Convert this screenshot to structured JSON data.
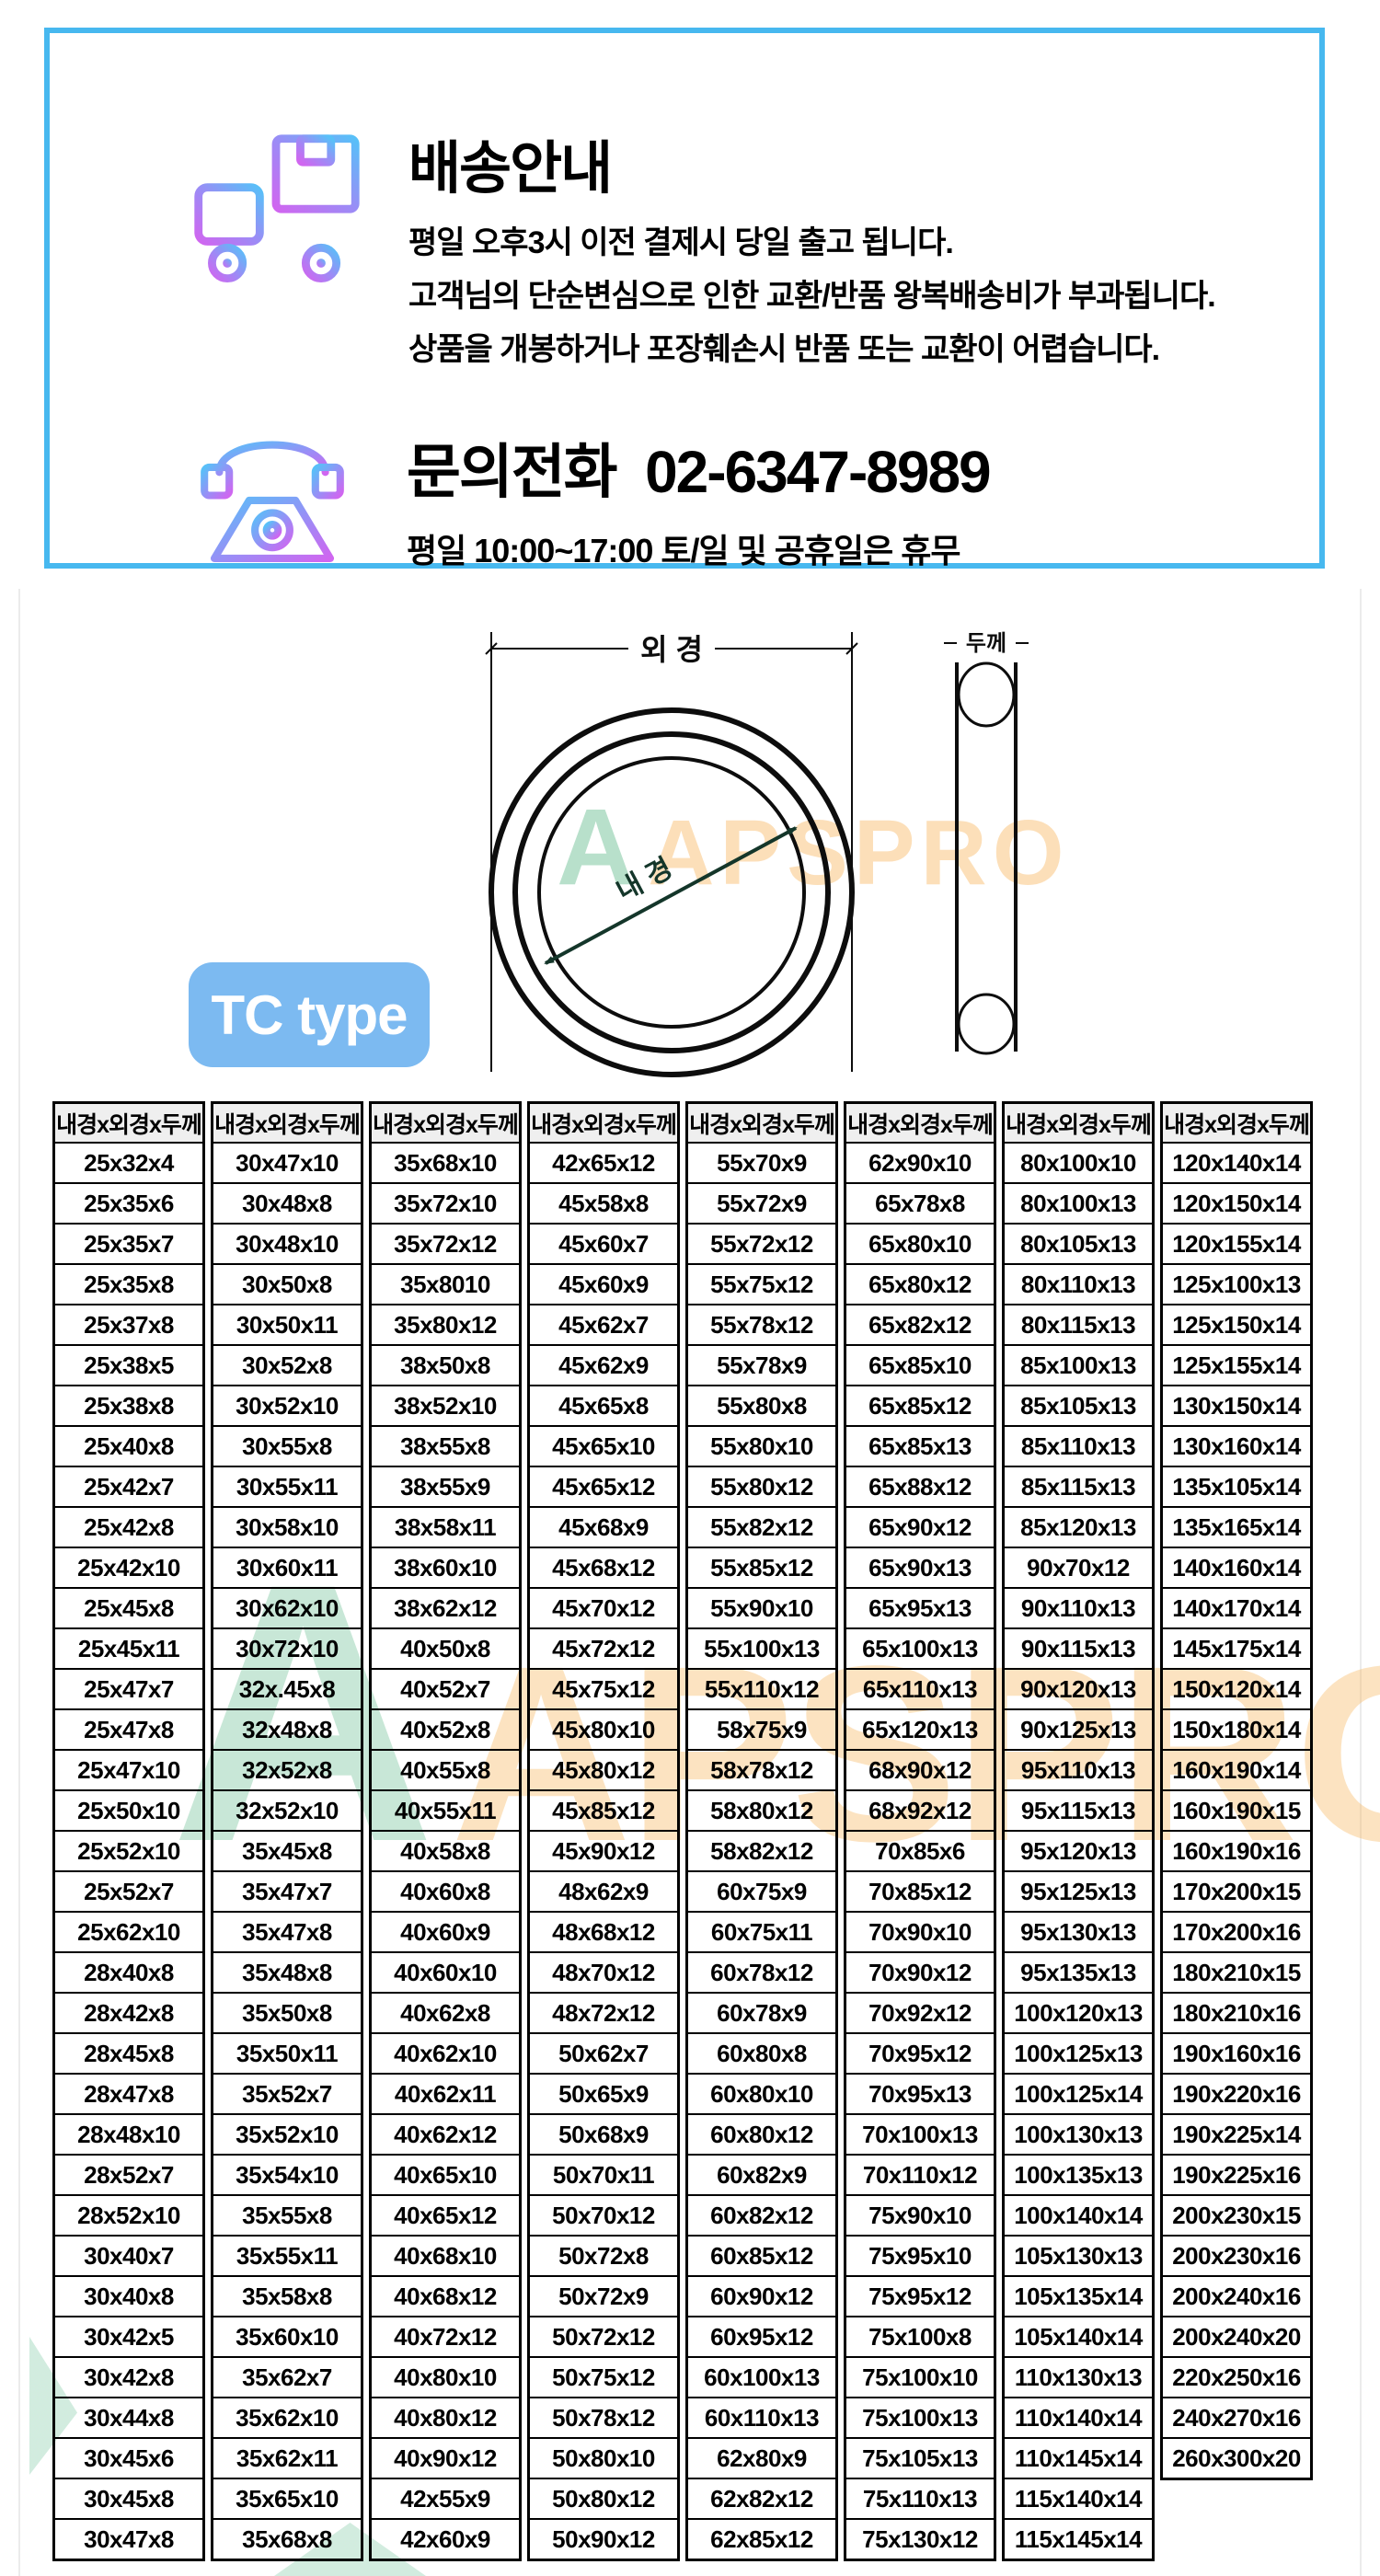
{
  "notice": {
    "shipping": {
      "title": "배송안내",
      "lines": [
        "평일 오후3시 이전 결제시 당일 출고 됩니다.",
        "고객님의 단순변심으로 인한 교환/반품 왕복배송비가 부과됩니다.",
        "상품을 개봉하거나 포장훼손시 반품 또는 교환이 어렵습니다."
      ]
    },
    "contact": {
      "title": "문의전화  02-6347-8989",
      "subtitle": "평일 10:00~17:00 토/일 및 공휴일은 휴무"
    }
  },
  "diagram": {
    "outer_diameter_label": "외 경",
    "inner_diameter_label": "내 경",
    "thickness_label": "두께",
    "type_badge": "TC type"
  },
  "watermark": {
    "logo": "A",
    "text": "APSPRO"
  },
  "colors": {
    "notice_border": "#47b8ef",
    "badge_blue": "#7cbaf1",
    "icon_purple": "#d066f0",
    "icon_cyan": "#58c0f8",
    "watermark_green": "#5db98b",
    "watermark_orange": "#f7b154",
    "header_gray": "#efefef"
  },
  "table": {
    "header": "내경x외경x두께",
    "columns": [
      [
        "25x32x4",
        "25x35x6",
        "25x35x7",
        "25x35x8",
        "25x37x8",
        "25x38x5",
        "25x38x8",
        "25x40x8",
        "25x42x7",
        "25x42x8",
        "25x42x10",
        "25x45x8",
        "25x45x11",
        "25x47x7",
        "25x47x8",
        "25x47x10",
        "25x50x10",
        "25x52x10",
        "25x52x7",
        "25x62x10",
        "28x40x8",
        "28x42x8",
        "28x45x8",
        "28x47x8",
        "28x48x10",
        "28x52x7",
        "28x52x10",
        "30x40x7",
        "30x40x8",
        "30x42x5",
        "30x42x8",
        "30x44x8",
        "30x45x6",
        "30x45x8",
        "30x47x8"
      ],
      [
        "30x47x10",
        "30x48x8",
        "30x48x10",
        "30x50x8",
        "30x50x11",
        "30x52x8",
        "30x52x10",
        "30x55x8",
        "30x55x11",
        "30x58x10",
        "30x60x11",
        "30x62x10",
        "30x72x10",
        "32x.45x8",
        "32x48x8",
        "32x52x8",
        "32x52x10",
        "35x45x8",
        "35x47x7",
        "35x47x8",
        "35x48x8",
        "35x50x8",
        "35x50x11",
        "35x52x7",
        "35x52x10",
        "35x54x10",
        "35x55x8",
        "35x55x11",
        "35x58x8",
        "35x60x10",
        "35x62x7",
        "35x62x10",
        "35x62x11",
        "35x65x10",
        "35x68x8"
      ],
      [
        "35x68x10",
        "35x72x10",
        "35x72x12",
        "35x8010",
        "35x80x12",
        "38x50x8",
        "38x52x10",
        "38x55x8",
        "38x55x9",
        "38x58x11",
        "38x60x10",
        "38x62x12",
        "40x50x8",
        "40x52x7",
        "40x52x8",
        "40x55x8",
        "40x55x11",
        "40x58x8",
        "40x60x8",
        "40x60x9",
        "40x60x10",
        "40x62x8",
        "40x62x10",
        "40x62x11",
        "40x62x12",
        "40x65x10",
        "40x65x12",
        "40x68x10",
        "40x68x12",
        "40x72x12",
        "40x80x10",
        "40x80x12",
        "40x90x12",
        "42x55x9",
        "42x60x9"
      ],
      [
        "42x65x12",
        "45x58x8",
        "45x60x7",
        "45x60x9",
        "45x62x7",
        "45x62x9",
        "45x65x8",
        "45x65x10",
        "45x65x12",
        "45x68x9",
        "45x68x12",
        "45x70x12",
        "45x72x12",
        "45x75x12",
        "45x80x10",
        "45x80x12",
        "45x85x12",
        "45x90x12",
        "48x62x9",
        "48x68x12",
        "48x70x12",
        "48x72x12",
        "50x62x7",
        "50x65x9",
        "50x68x9",
        "50x70x11",
        "50x70x12",
        "50x72x8",
        "50x72x9",
        "50x72x12",
        "50x75x12",
        "50x78x12",
        "50x80x10",
        "50x80x12",
        "50x90x12"
      ],
      [
        "55x70x9",
        "55x72x9",
        "55x72x12",
        "55x75x12",
        "55x78x12",
        "55x78x9",
        "55x80x8",
        "55x80x10",
        "55x80x12",
        "55x82x12",
        "55x85x12",
        "55x90x10",
        "55x100x13",
        "55x110x12",
        "58x75x9",
        "58x78x12",
        "58x80x12",
        "58x82x12",
        "60x75x9",
        "60x75x11",
        "60x78x12",
        "60x78x9",
        "60x80x8",
        "60x80x10",
        "60x80x12",
        "60x82x9",
        "60x82x12",
        "60x85x12",
        "60x90x12",
        "60x95x12",
        "60x100x13",
        "60x110x13",
        "62x80x9",
        "62x82x12",
        "62x85x12"
      ],
      [
        "62x90x10",
        "65x78x8",
        "65x80x10",
        "65x80x12",
        "65x82x12",
        "65x85x10",
        "65x85x12",
        "65x85x13",
        "65x88x12",
        "65x90x12",
        "65x90x13",
        "65x95x13",
        "65x100x13",
        "65x110x13",
        "65x120x13",
        "68x90x12",
        "68x92x12",
        "70x85x6",
        "70x85x12",
        "70x90x10",
        "70x90x12",
        "70x92x12",
        "70x95x12",
        "70x95x13",
        "70x100x13",
        "70x110x12",
        "75x90x10",
        "75x95x10",
        "75x95x12",
        "75x100x8",
        "75x100x10",
        "75x100x13",
        "75x105x13",
        "75x110x13",
        "75x130x12"
      ],
      [
        "80x100x10",
        "80x100x13",
        "80x105x13",
        "80x110x13",
        "80x115x13",
        "85x100x13",
        "85x105x13",
        "85x110x13",
        "85x115x13",
        "85x120x13",
        "90x70x12",
        "90x110x13",
        "90x115x13",
        "90x120x13",
        "90x125x13",
        "95x110x13",
        "95x115x13",
        "95x120x13",
        "95x125x13",
        "95x130x13",
        "95x135x13",
        "100x120x13",
        "100x125x13",
        "100x125x14",
        "100x130x13",
        "100x135x13",
        "100x140x14",
        "105x130x13",
        "105x135x14",
        "105x140x14",
        "110x130x13",
        "110x140x14",
        "110x145x14",
        "115x140x14",
        "115x145x14"
      ],
      [
        "120x140x14",
        "120x150x14",
        "120x155x14",
        "125x100x13",
        "125x150x14",
        "125x155x14",
        "130x150x14",
        "130x160x14",
        "135x105x14",
        "135x165x14",
        "140x160x14",
        "140x170x14",
        "145x175x14",
        "150x120x14",
        "150x180x14",
        "160x190x14",
        "160x190x15",
        "160x190x16",
        "170x200x15",
        "170x200x16",
        "180x210x15",
        "180x210x16",
        "190x160x16",
        "190x220x16",
        "190x225x14",
        "190x225x16",
        "200x230x15",
        "200x230x16",
        "200x240x16",
        "200x240x20",
        "220x250x16",
        "240x270x16",
        "260x300x20"
      ]
    ]
  }
}
